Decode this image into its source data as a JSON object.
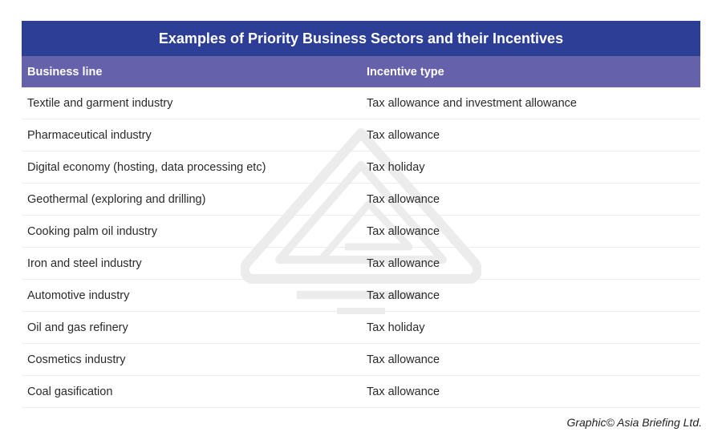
{
  "table": {
    "title": "Examples of Priority Business Sectors and their Incentives",
    "headers": [
      "Business line",
      "Incentive type"
    ],
    "rows": [
      [
        "Textile and garment industry",
        "Tax allowance and investment allowance"
      ],
      [
        "Pharmaceutical industry",
        "Tax allowance"
      ],
      [
        "Digital economy (hosting, data processing etc)",
        "Tax holiday"
      ],
      [
        "Geothermal (exploring and drilling)",
        "Tax allowance"
      ],
      [
        "Cooking palm oil industry",
        "Tax allowance"
      ],
      [
        "Iron and steel industry",
        "Tax allowance"
      ],
      [
        "Automotive industry",
        "Tax allowance"
      ],
      [
        "Oil and gas refinery",
        "Tax holiday"
      ],
      [
        "Cosmetics industry",
        "Tax allowance"
      ],
      [
        "Coal gasification",
        "Tax allowance"
      ]
    ]
  },
  "credit": "Graphic© Asia Briefing Ltd.",
  "colors": {
    "title_bg": "#2c3e96",
    "header_bg": "#6661ab",
    "text": "#2a2a2a"
  },
  "watermark": {
    "icon": "asia-briefing-logo-watermark"
  }
}
